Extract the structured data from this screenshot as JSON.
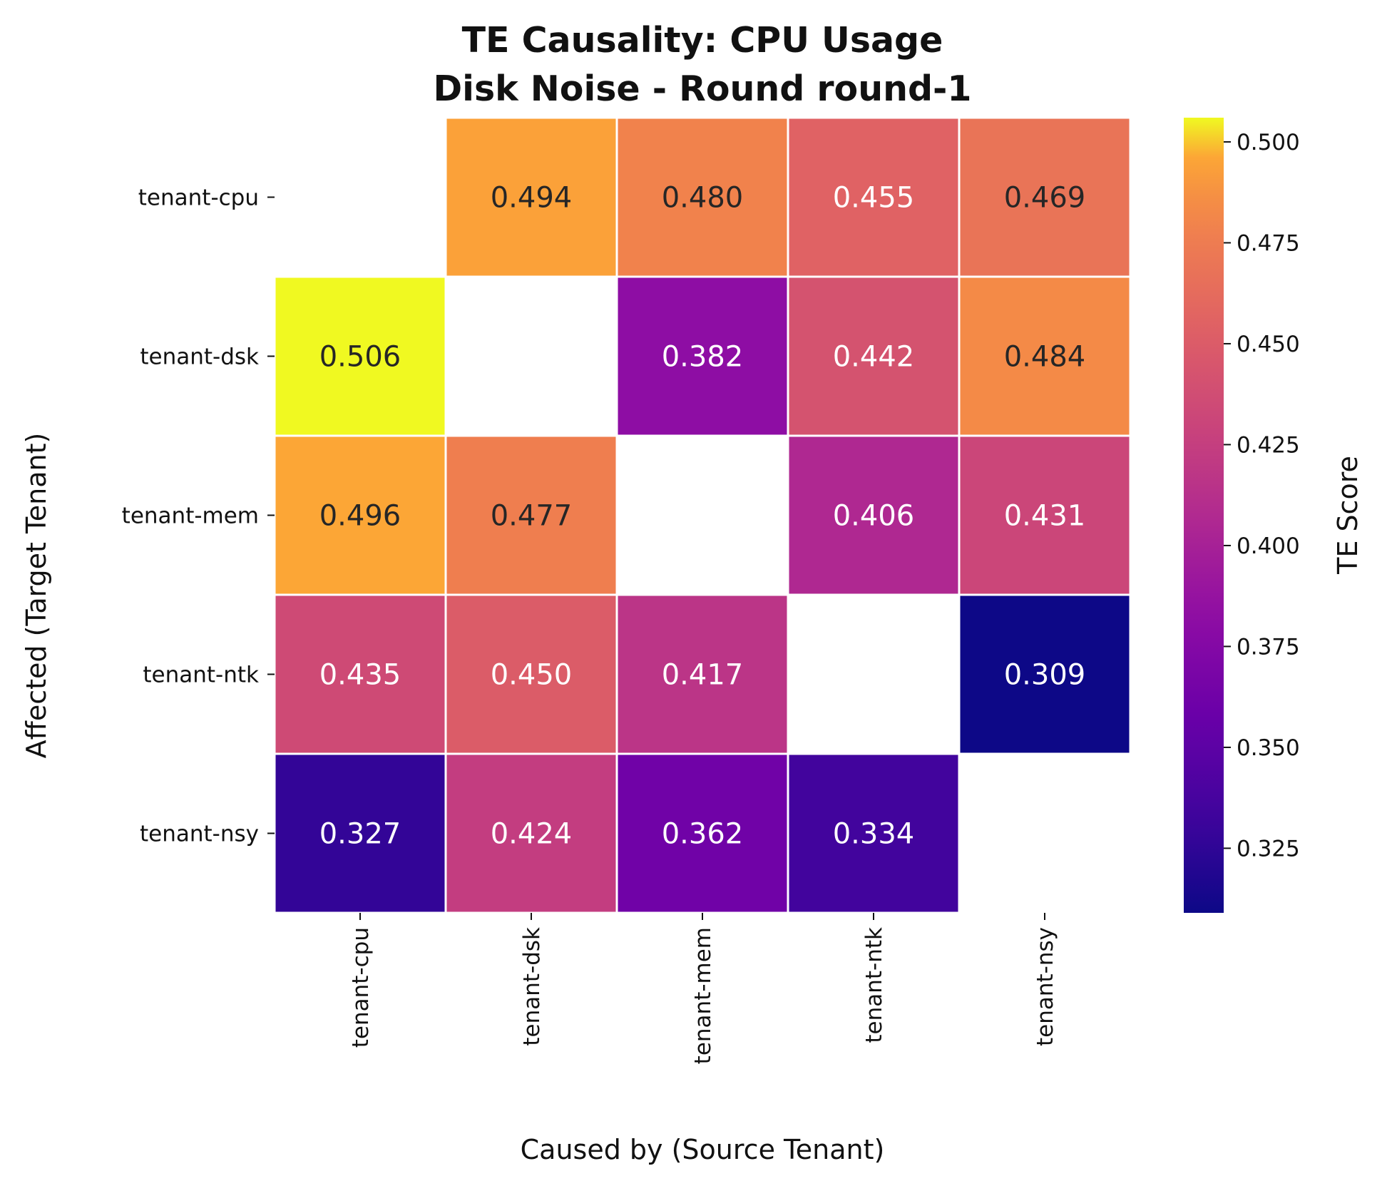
{
  "chart_data": {
    "type": "heatmap",
    "title_lines": [
      "TE Causality: CPU Usage",
      "Disk Noise - Round round-1"
    ],
    "xlabel": "Caused by (Source Tenant)",
    "ylabel": "Affected (Target Tenant)",
    "x_categories": [
      "tenant-cpu",
      "tenant-dsk",
      "tenant-mem",
      "tenant-ntk",
      "tenant-nsy"
    ],
    "y_categories": [
      "tenant-cpu",
      "tenant-dsk",
      "tenant-mem",
      "tenant-ntk",
      "tenant-nsy"
    ],
    "values": [
      [
        null,
        0.494,
        0.48,
        0.455,
        0.469
      ],
      [
        0.506,
        null,
        0.382,
        0.442,
        0.484
      ],
      [
        0.496,
        0.477,
        null,
        0.406,
        0.431
      ],
      [
        0.435,
        0.45,
        0.417,
        null,
        0.309
      ],
      [
        0.327,
        0.424,
        0.362,
        0.334,
        null
      ]
    ],
    "value_labels": [
      [
        null,
        "0.494",
        "0.480",
        "0.455",
        "0.469"
      ],
      [
        "0.506",
        null,
        "0.382",
        "0.442",
        "0.484"
      ],
      [
        "0.496",
        "0.477",
        null,
        "0.406",
        "0.431"
      ],
      [
        "0.435",
        "0.450",
        "0.417",
        null,
        "0.309"
      ],
      [
        "0.327",
        "0.424",
        "0.362",
        "0.334",
        null
      ]
    ],
    "colormap": "plasma",
    "colorbar": {
      "label": "TE Score",
      "range": [
        0.309,
        0.506
      ],
      "ticks": [
        0.325,
        0.35,
        0.375,
        0.4,
        0.425,
        0.45,
        0.475,
        0.5
      ],
      "tick_labels": [
        "0.325",
        "0.350",
        "0.375",
        "0.400",
        "0.425",
        "0.450",
        "0.475",
        "0.500"
      ]
    }
  }
}
